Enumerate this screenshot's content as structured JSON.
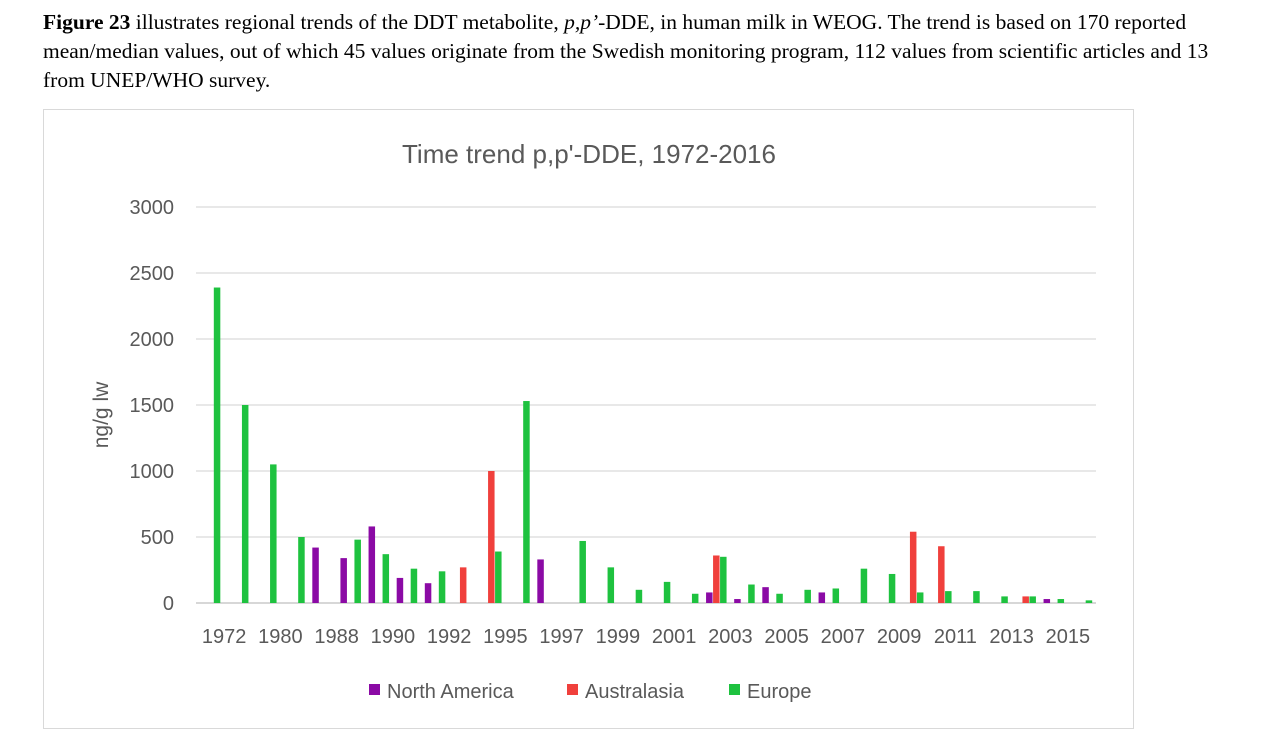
{
  "caption": {
    "fig_ref": "Figure 23",
    "text_before_italic": " illustrates regional trends of the DDT metabolite, ",
    "italic": "p,p’",
    "text_after_italic": "-DDE, in human milk in WEOG. The trend is based on 170 reported mean/median values, out of which 45 values originate from the Swedish monitoring program, 112 values from scientific articles and 13 from UNEP/WHO survey."
  },
  "chart_data": {
    "type": "bar",
    "title": "Time trend  p,p'-DDE, 1972-2016",
    "ylabel": "ng/g lw",
    "xlabel": "",
    "ylim": [
      0,
      3000
    ],
    "yticks": [
      0,
      500,
      1000,
      1500,
      2000,
      2500,
      3000
    ],
    "grid": true,
    "legend_position": "bottom",
    "category_labels_shown": [
      "1972",
      "1980",
      "1988",
      "1990",
      "1992",
      "1995",
      "1997",
      "1999",
      "2001",
      "2003",
      "2005",
      "2007",
      "2009",
      "2011",
      "2013",
      "2015"
    ],
    "category_count": 32,
    "series": [
      {
        "name": "North America",
        "color": "#8b0aa5",
        "values": [
          0,
          0,
          0,
          0,
          420,
          340,
          580,
          190,
          150,
          0,
          0,
          0,
          330,
          0,
          0,
          0,
          0,
          0,
          80,
          30,
          120,
          0,
          80,
          0,
          0,
          0,
          0,
          0,
          0,
          0,
          30,
          0
        ]
      },
      {
        "name": "Australasia",
        "color": "#f0403c",
        "values": [
          0,
          0,
          0,
          0,
          0,
          0,
          0,
          0,
          0,
          270,
          1000,
          0,
          0,
          0,
          0,
          0,
          0,
          0,
          360,
          0,
          0,
          0,
          0,
          0,
          0,
          540,
          430,
          0,
          0,
          50,
          0,
          0
        ]
      },
      {
        "name": "Europe",
        "color": "#1ec23f",
        "values": [
          2390,
          1500,
          1050,
          500,
          0,
          480,
          370,
          260,
          240,
          0,
          390,
          1530,
          0,
          470,
          270,
          100,
          160,
          70,
          350,
          140,
          70,
          100,
          110,
          260,
          220,
          80,
          90,
          90,
          50,
          50,
          30,
          20
        ]
      }
    ]
  }
}
